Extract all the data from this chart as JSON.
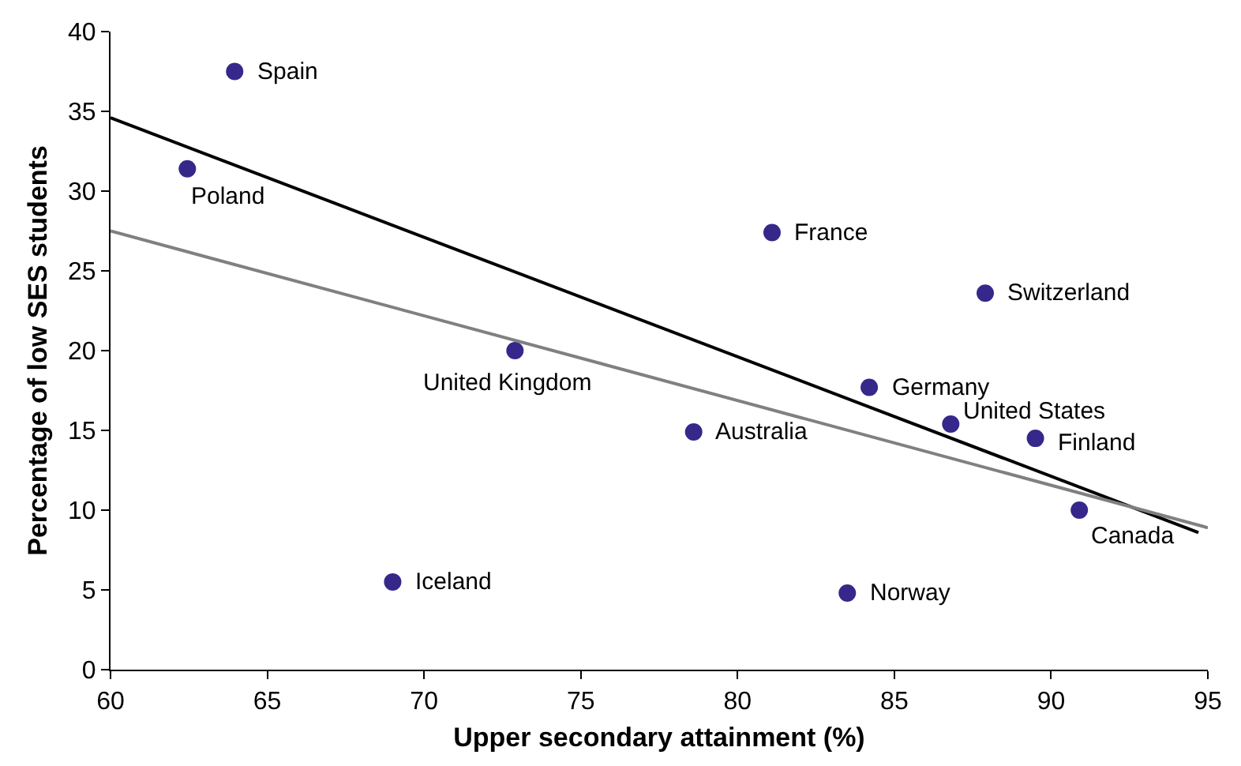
{
  "chart_data": {
    "type": "scatter",
    "xlabel": "Upper secondary attainment (%)",
    "ylabel": "Percentage of low SES students",
    "xlim": [
      60,
      95
    ],
    "xticks": [
      60,
      65,
      70,
      75,
      80,
      85,
      90,
      95
    ],
    "ylim": [
      0,
      40
    ],
    "yticks": [
      0,
      5,
      10,
      15,
      20,
      25,
      30,
      35,
      40
    ],
    "series": [
      {
        "marker": "circle",
        "color": "#35288a",
        "x": [
          63.96,
          62.45,
          81.1,
          87.9,
          72.9,
          84.2,
          86.8,
          89.5,
          78.6,
          90.9,
          69.0,
          83.5
        ],
        "values": [
          37.5,
          31.4,
          27.4,
          23.6,
          20.0,
          17.7,
          15.4,
          14.5,
          14.9,
          10.0,
          5.5,
          4.8
        ]
      },
      {
        "type": "line",
        "marker": "none",
        "color": "#000000",
        "x": [
          60,
          94.7
        ],
        "values": [
          34.6,
          8.6
        ]
      },
      {
        "type": "line",
        "marker": "none",
        "color": "#808080",
        "x": [
          60,
          95
        ],
        "values": [
          27.5,
          8.9
        ]
      }
    ],
    "annotations": [
      {
        "text": "Spain",
        "x": 63.96,
        "y": 37.5
      },
      {
        "text": "Poland",
        "x": 62.45,
        "y": 31.4
      },
      {
        "text": "France",
        "x": 81.1,
        "y": 27.4
      },
      {
        "text": "Switzerland",
        "x": 87.9,
        "y": 23.6
      },
      {
        "text": "United Kingdom",
        "x": 72.9,
        "y": 20.0
      },
      {
        "text": "Germany",
        "x": 84.2,
        "y": 17.7
      },
      {
        "text": "United States",
        "x": 86.8,
        "y": 15.4
      },
      {
        "text": "Finland",
        "x": 89.5,
        "y": 14.5
      },
      {
        "text": "Australia",
        "x": 78.6,
        "y": 14.9
      },
      {
        "text": "Canada",
        "x": 90.9,
        "y": 10.0
      },
      {
        "text": "Iceland",
        "x": 69.0,
        "y": 5.5
      },
      {
        "text": "Norway",
        "x": 83.5,
        "y": 4.8
      }
    ]
  }
}
